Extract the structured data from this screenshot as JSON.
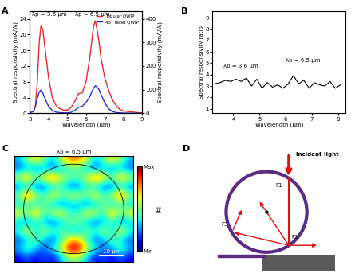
{
  "chart_data": [
    {
      "type": "line",
      "panel_label": "A",
      "x": [
        3.0,
        3.2,
        3.3,
        3.4,
        3.5,
        3.6,
        3.7,
        3.8,
        3.9,
        4.0,
        4.2,
        4.4,
        4.6,
        4.8,
        5.0,
        5.2,
        5.4,
        5.6,
        5.8,
        6.0,
        6.2,
        6.3,
        6.4,
        6.5,
        6.6,
        6.7,
        6.8,
        7.0,
        7.2,
        7.4,
        7.6,
        7.8,
        8.0,
        8.5,
        9.0
      ],
      "series": [
        {
          "name": "Tubular QWIP",
          "color": "#e8262a",
          "values": [
            0.2,
            0.5,
            2,
            8,
            18,
            22.5,
            21,
            17,
            13,
            9,
            4,
            2,
            1.2,
            0.8,
            0.8,
            1.5,
            3,
            5,
            5.2,
            8,
            14,
            18,
            22,
            23.5,
            21,
            18,
            14,
            9,
            6,
            3.5,
            2,
            1,
            0.6,
            0.3,
            0.1
          ]
        },
        {
          "name": "45° facet QWIP",
          "color": "#2b2bd0",
          "axis": "y2",
          "values": [
            2,
            8,
            30,
            65,
            90,
            100,
            85,
            65,
            45,
            30,
            12,
            5,
            3,
            2,
            2,
            4,
            12,
            25,
            30,
            45,
            70,
            90,
            105,
            117,
            110,
            100,
            80,
            45,
            20,
            8,
            3,
            2,
            1,
            0.5,
            0
          ]
        }
      ],
      "x_label": "Wavelength (μm)",
      "y_label": "Spectral responsivity (mA/W)",
      "y2_label": "Spectral responsivity (mA/W)",
      "xlim": [
        3,
        9
      ],
      "xticks": [
        3,
        4,
        5,
        6,
        7,
        8,
        9
      ],
      "ylim": [
        0,
        26
      ],
      "yticks": [
        0,
        4,
        8,
        12,
        16,
        20,
        24
      ],
      "y2lim": [
        0,
        433
      ],
      "y2ticks": [
        0,
        100,
        200,
        300,
        400
      ],
      "legend": "upper right",
      "annotations": [
        "λp = 3.6 μm",
        "λp = 6.5 μm"
      ]
    },
    {
      "type": "line",
      "panel_label": "B",
      "x": [
        3.3,
        3.5,
        3.7,
        3.9,
        4.1,
        4.3,
        4.5,
        4.7,
        4.9,
        5.1,
        5.3,
        5.5,
        5.7,
        5.9,
        6.1,
        6.3,
        6.5,
        6.7,
        6.9,
        7.1,
        7.3,
        7.5,
        7.7,
        7.9,
        8.1
      ],
      "series": [
        {
          "name": "Spectral responsivity ratio",
          "color": "#000000",
          "values": [
            3.2,
            3.3,
            3.5,
            3.4,
            3.6,
            3.4,
            3.7,
            3.0,
            3.6,
            2.8,
            3.3,
            2.9,
            3.1,
            2.8,
            3.2,
            3.9,
            3.2,
            3.5,
            2.8,
            3.3,
            3.1,
            3.0,
            3.4,
            2.8,
            3.1
          ]
        }
      ],
      "x_label": "Wavelength (μm)",
      "y_label": "Spectral responsivity ratio",
      "xlim": [
        3.2,
        8.3
      ],
      "xticks": [
        4,
        5,
        6,
        7,
        8
      ],
      "ylim": [
        0.6,
        9.6
      ],
      "yticks": [
        1,
        2,
        3,
        4,
        5,
        6,
        7,
        8,
        9
      ],
      "annotations": [
        "λp = 3.6 μm",
        "λp = 6.5 μm"
      ]
    },
    {
      "type": "heatmap",
      "panel_label": "C",
      "title": "λp = 6.5 μm",
      "tick_labels": false,
      "cells": [
        [
          0.3,
          0.5,
          0.7,
          0.5,
          0.3,
          0.6,
          0.8,
          0.8,
          0.6,
          0.3,
          0.5,
          0.7,
          0.5,
          0.3
        ],
        [
          0.2,
          0.3,
          0.2,
          0.3,
          0.2,
          0.3,
          0.4,
          0.4,
          0.3,
          0.2,
          0.3,
          0.2,
          0.3,
          0.2
        ],
        [
          0.6,
          0.8,
          0.5,
          0.7,
          0.9,
          0.6,
          0.5,
          0.5,
          0.6,
          0.9,
          0.7,
          0.5,
          0.8,
          0.6
        ],
        [
          0.2,
          0.3,
          0.2,
          0.2,
          0.3,
          0.4,
          0.2,
          0.2,
          0.4,
          0.3,
          0.2,
          0.2,
          0.3,
          0.2
        ],
        [
          0.5,
          0.9,
          0.6,
          0.4,
          0.7,
          0.5,
          0.6,
          0.6,
          0.5,
          0.7,
          0.4,
          0.6,
          0.9,
          0.5
        ],
        [
          0.3,
          0.4,
          0.3,
          0.5,
          0.3,
          0.2,
          0.3,
          0.3,
          0.2,
          0.3,
          0.5,
          0.3,
          0.4,
          0.3
        ],
        [
          0.7,
          0.5,
          0.8,
          0.4,
          0.6,
          0.7,
          0.4,
          0.4,
          0.7,
          0.6,
          0.4,
          0.8,
          0.5,
          0.7
        ],
        [
          0.3,
          0.2,
          0.4,
          0.3,
          0.2,
          0.3,
          0.5,
          0.5,
          0.3,
          0.2,
          0.3,
          0.4,
          0.2,
          0.3
        ],
        [
          0.4,
          0.7,
          0.3,
          0.6,
          0.4,
          0.5,
          0.3,
          0.3,
          0.5,
          0.4,
          0.6,
          0.3,
          0.7,
          0.4
        ],
        [
          0.2,
          0.3,
          0.5,
          0.3,
          0.2,
          0.4,
          0.7,
          0.7,
          0.4,
          0.2,
          0.3,
          0.5,
          0.3,
          0.2
        ],
        [
          0.3,
          0.5,
          0.3,
          0.2,
          0.4,
          0.6,
          1.0,
          1.0,
          0.6,
          0.4,
          0.2,
          0.3,
          0.5,
          0.3
        ],
        [
          0.1,
          0.2,
          0.1,
          0.2,
          0.1,
          0.3,
          0.5,
          0.5,
          0.3,
          0.1,
          0.2,
          0.1,
          0.2,
          0.1
        ]
      ],
      "color_range": [
        0,
        1
      ],
      "color_ticks": [
        {
          "value": 1,
          "label": "Max"
        },
        {
          "value": 0,
          "label": "Min"
        }
      ],
      "color_label": "|E|",
      "annotations": [
        "10 μm"
      ]
    }
  ],
  "diagram": {
    "panel_label": "D",
    "labels": {
      "incident": "Incident light",
      "f1": "F1",
      "f2": "F2",
      "f3": "F3"
    }
  }
}
